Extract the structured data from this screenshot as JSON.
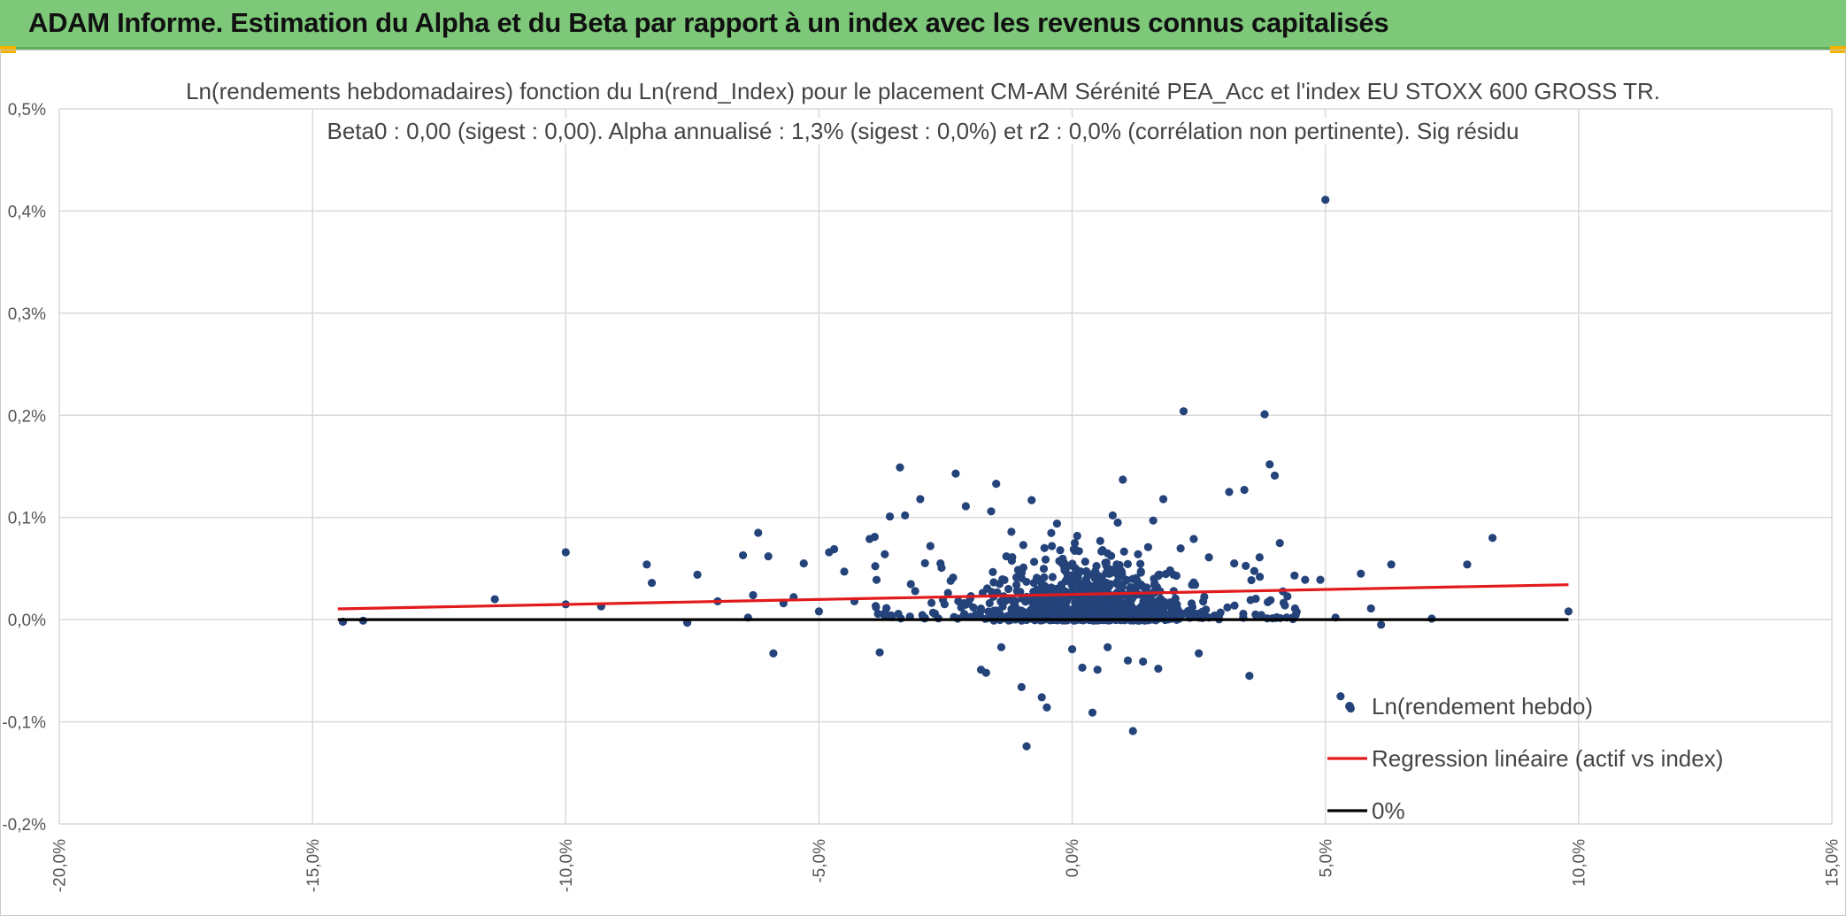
{
  "banner": {
    "title": "ADAM Informe. Estimation du Alpha et du Beta par rapport à un index avec les revenus connus capitalisés"
  },
  "colors": {
    "banner": "#7ec87a",
    "points": "#24437a",
    "regression": "#e31a1c",
    "zero_line": "#000000",
    "grid": "#d9d9d9"
  },
  "chart_data": {
    "type": "scatter",
    "title_line1": "Ln(rendements hebdomadaires) fonction du Ln(rend_Index) pour le placement CM-AM Sérénité PEA_Acc et l'index EU STOXX 600 GROSS TR.",
    "title_line2": "Beta0 : 0,00 (sigest : 0,00). Alpha annualisé : 1,3% (sigest : 0,0%) et r2 : 0,0% (corrélation non pertinente). Sig résidu",
    "xlabel": "",
    "ylabel": "",
    "xlim": [
      -20,
      15
    ],
    "ylim": [
      -0.2,
      0.5
    ],
    "x_ticks": [
      "-20,0%",
      "-15,0%",
      "-10,0%",
      "-5,0%",
      "0,0%",
      "5,0%",
      "10,0%",
      "15,0%"
    ],
    "y_ticks": [
      "0,5%",
      "0,4%",
      "0,3%",
      "0,2%",
      "0,1%",
      "0,0%",
      "-0,1%",
      "-0,2%"
    ],
    "grid": "vertical and horizontal",
    "legend_position": "bottom-right",
    "series": [
      {
        "name": "Ln(rendement hebdo)",
        "kind": "scatter",
        "points": [
          [
            -14.4,
            -0.002
          ],
          [
            -14.0,
            -0.001
          ],
          [
            -11.4,
            0.02
          ],
          [
            -10.0,
            0.066
          ],
          [
            -10.0,
            0.015
          ],
          [
            -9.3,
            0.013
          ],
          [
            -8.4,
            0.054
          ],
          [
            -8.3,
            0.036
          ],
          [
            -7.6,
            -0.003
          ],
          [
            -7.4,
            0.044
          ],
          [
            -7.0,
            0.018
          ],
          [
            -6.5,
            0.063
          ],
          [
            -6.4,
            0.002
          ],
          [
            -6.3,
            0.024
          ],
          [
            -6.2,
            0.085
          ],
          [
            -6.0,
            0.062
          ],
          [
            -5.9,
            -0.033
          ],
          [
            -5.7,
            0.016
          ],
          [
            -5.5,
            0.022
          ],
          [
            -5.3,
            0.055
          ],
          [
            -5.0,
            0.008
          ],
          [
            -4.8,
            0.066
          ],
          [
            -4.7,
            0.069
          ],
          [
            -4.5,
            0.047
          ],
          [
            -4.3,
            0.018
          ],
          [
            -4.0,
            0.079
          ],
          [
            -3.9,
            0.081
          ],
          [
            -3.8,
            -0.032
          ],
          [
            -3.7,
            0.064
          ],
          [
            -3.6,
            0.101
          ],
          [
            -3.4,
            0.149
          ],
          [
            -3.3,
            0.102
          ],
          [
            -3.1,
            0.028
          ],
          [
            -3.0,
            0.118
          ],
          [
            -2.8,
            0.072
          ],
          [
            -2.6,
            0.055
          ],
          [
            -2.4,
            0.038
          ],
          [
            -2.3,
            0.143
          ],
          [
            -2.1,
            0.111
          ],
          [
            -2.0,
            0.023
          ],
          [
            -1.8,
            -0.049
          ],
          [
            -1.7,
            -0.052
          ],
          [
            -1.6,
            0.106
          ],
          [
            -1.5,
            0.133
          ],
          [
            -1.4,
            -0.027
          ],
          [
            -1.3,
            0.062
          ],
          [
            -1.2,
            0.086
          ],
          [
            -1.1,
            0.034
          ],
          [
            -1.0,
            -0.066
          ],
          [
            -0.9,
            -0.124
          ],
          [
            -0.8,
            0.117
          ],
          [
            -0.7,
            0.041
          ],
          [
            -0.6,
            -0.076
          ],
          [
            -0.5,
            -0.086
          ],
          [
            -0.4,
            0.072
          ],
          [
            -0.3,
            0.094
          ],
          [
            -0.2,
            0.055
          ],
          [
            0.0,
            -0.029
          ],
          [
            0.1,
            0.082
          ],
          [
            0.2,
            -0.047
          ],
          [
            0.3,
            0.046
          ],
          [
            0.4,
            -0.091
          ],
          [
            0.5,
            -0.049
          ],
          [
            0.6,
            0.068
          ],
          [
            0.7,
            -0.027
          ],
          [
            0.8,
            0.102
          ],
          [
            0.9,
            0.095
          ],
          [
            1.0,
            0.137
          ],
          [
            1.1,
            -0.04
          ],
          [
            1.2,
            -0.109
          ],
          [
            1.3,
            0.064
          ],
          [
            1.4,
            -0.041
          ],
          [
            1.5,
            0.071
          ],
          [
            1.6,
            0.097
          ],
          [
            1.7,
            -0.048
          ],
          [
            1.8,
            0.118
          ],
          [
            2.0,
            0.044
          ],
          [
            2.2,
            0.204
          ],
          [
            2.4,
            0.079
          ],
          [
            2.5,
            -0.033
          ],
          [
            2.7,
            0.061
          ],
          [
            2.9,
            0.004
          ],
          [
            3.1,
            0.125
          ],
          [
            3.2,
            0.055
          ],
          [
            3.4,
            0.127
          ],
          [
            3.5,
            -0.055
          ],
          [
            3.7,
            0.061
          ],
          [
            3.8,
            0.201
          ],
          [
            3.9,
            0.152
          ],
          [
            4.0,
            0.141
          ],
          [
            4.1,
            0.075
          ],
          [
            4.2,
            0.014
          ],
          [
            4.4,
            0.011
          ],
          [
            4.6,
            0.039
          ],
          [
            4.9,
            0.039
          ],
          [
            5.0,
            0.411
          ],
          [
            5.2,
            0.002
          ],
          [
            5.3,
            -0.075
          ],
          [
            5.5,
            -0.087
          ],
          [
            5.7,
            0.045
          ],
          [
            5.9,
            0.011
          ],
          [
            6.1,
            -0.005
          ],
          [
            6.3,
            0.054
          ],
          [
            7.1,
            0.001
          ],
          [
            7.8,
            0.054
          ],
          [
            8.3,
            0.08
          ],
          [
            9.8,
            0.008
          ]
        ]
      },
      {
        "name": "Regression linéaire (actif vs index)",
        "kind": "line",
        "points": [
          [
            -14.5,
            0.0105
          ],
          [
            9.8,
            0.0342
          ]
        ]
      },
      {
        "name": "0%",
        "kind": "line",
        "points": [
          [
            -14.5,
            0.0
          ],
          [
            9.8,
            0.0
          ]
        ]
      }
    ]
  }
}
